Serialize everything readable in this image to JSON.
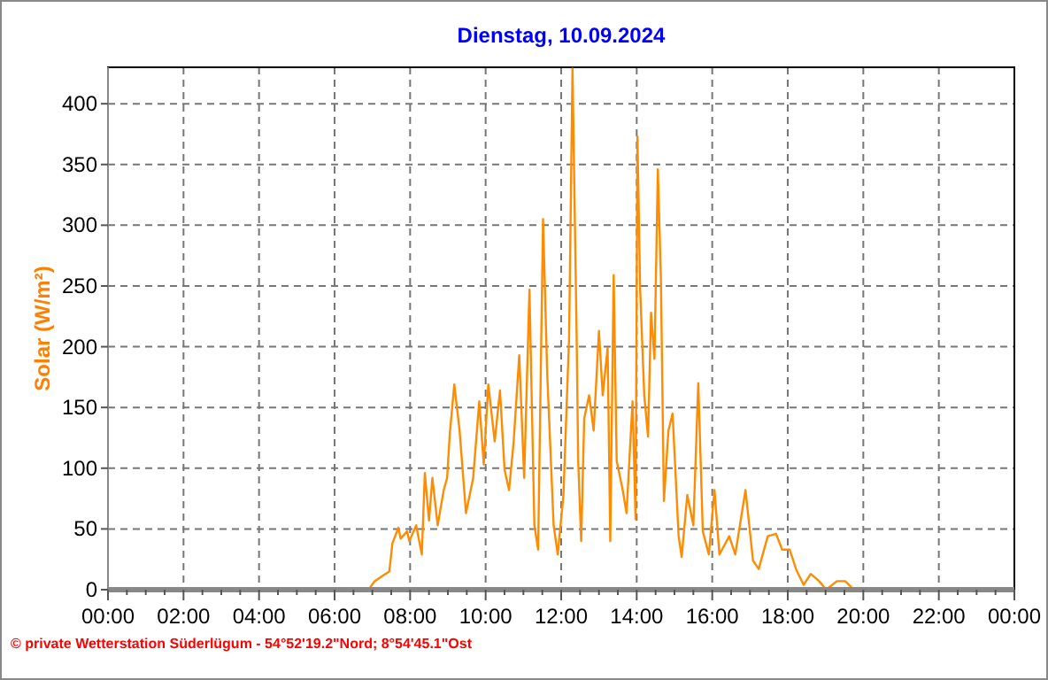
{
  "chart_data": {
    "type": "line",
    "title": "Dienstag, 10.09.2024",
    "ylabel": "Solar (W/m²)",
    "xlim": [
      0,
      24
    ],
    "xticks": [
      {
        "value": 0,
        "label": "00:00"
      },
      {
        "value": 2,
        "label": "02:00"
      },
      {
        "value": 4,
        "label": "04:00"
      },
      {
        "value": 6,
        "label": "06:00"
      },
      {
        "value": 8,
        "label": "08:00"
      },
      {
        "value": 10,
        "label": "10:00"
      },
      {
        "value": 12,
        "label": "12:00"
      },
      {
        "value": 14,
        "label": "14:00"
      },
      {
        "value": 16,
        "label": "16:00"
      },
      {
        "value": 18,
        "label": "18:00"
      },
      {
        "value": 20,
        "label": "20:00"
      },
      {
        "value": 22,
        "label": "22:00"
      },
      {
        "value": 24,
        "label": "00:00"
      }
    ],
    "ylim": [
      0,
      430
    ],
    "yticks": [
      0,
      50,
      100,
      150,
      200,
      250,
      300,
      350,
      400
    ],
    "grid": true,
    "annotations": [
      "© private Wetterstation Süderlügum - 54°52'19.2\"Nord; 8°54'45.1\"Ost"
    ],
    "series": [
      {
        "color": "#ff8c00",
        "x": [
          6.9,
          7.06,
          7.3,
          7.45,
          7.53,
          7.69,
          7.75,
          7.92,
          7.98,
          8.16,
          8.31,
          8.39,
          8.5,
          8.59,
          8.73,
          8.89,
          8.98,
          9.05,
          9.17,
          9.31,
          9.48,
          9.67,
          9.83,
          9.95,
          10.07,
          10.24,
          10.38,
          10.5,
          10.62,
          10.74,
          10.89,
          11.02,
          11.16,
          11.29,
          11.39,
          11.52,
          11.63,
          11.8,
          11.91,
          12.06,
          12.21,
          12.3,
          12.41,
          12.45,
          12.53,
          12.61,
          12.74,
          12.86,
          13.0,
          13.1,
          13.23,
          13.3,
          13.39,
          13.47,
          13.63,
          13.73,
          13.89,
          13.97,
          14.02,
          14.09,
          14.2,
          14.3,
          14.38,
          14.47,
          14.56,
          14.64,
          14.72,
          14.84,
          14.95,
          15.11,
          15.19,
          15.34,
          15.5,
          15.63,
          15.75,
          15.91,
          16.06,
          16.19,
          16.45,
          16.61,
          16.88,
          17.08,
          17.23,
          17.47,
          17.69,
          17.85,
          18.05,
          18.23,
          18.42,
          18.61,
          18.83,
          19.02,
          19.3,
          19.52,
          19.75
        ],
        "values": [
          0,
          7,
          12,
          15,
          38,
          51,
          42,
          48,
          40,
          53,
          29,
          96,
          57,
          92,
          53,
          82,
          92,
          128,
          169,
          131,
          63,
          92,
          155,
          103,
          169,
          122,
          164,
          99,
          82,
          121,
          193,
          92,
          247,
          53,
          33,
          305,
          178,
          53,
          29,
          78,
          208,
          429,
          208,
          106,
          40,
          141,
          160,
          131,
          213,
          160,
          199,
          40,
          259,
          106,
          82,
          63,
          155,
          58,
          373,
          248,
          160,
          126,
          228,
          190,
          346,
          257,
          73,
          131,
          145,
          44,
          27,
          78,
          53,
          170,
          48,
          29,
          82,
          29,
          44,
          29,
          82,
          24,
          17,
          44,
          46,
          33,
          33,
          16,
          4,
          13,
          7,
          0,
          7,
          7,
          0
        ]
      }
    ]
  }
}
